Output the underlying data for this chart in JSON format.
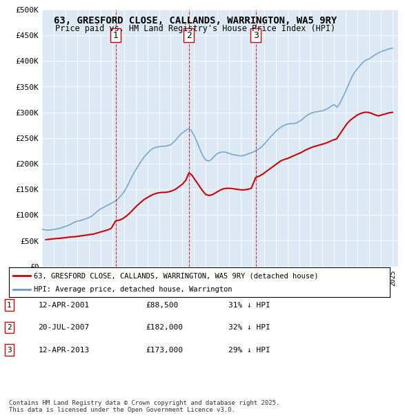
{
  "title": "63, GRESFORD CLOSE, CALLANDS, WARRINGTON, WA5 9RY",
  "subtitle": "Price paid vs. HM Land Registry's House Price Index (HPI)",
  "ylim": [
    0,
    500000
  ],
  "yticks": [
    0,
    50000,
    100000,
    150000,
    200000,
    250000,
    300000,
    350000,
    400000,
    450000,
    500000
  ],
  "ytick_labels": [
    "£0",
    "£50K",
    "£100K",
    "£150K",
    "£200K",
    "£250K",
    "£300K",
    "£350K",
    "£400K",
    "£450K",
    "£500K"
  ],
  "xlim_start": 1995.0,
  "xlim_end": 2025.5,
  "background_color": "#dce9f5",
  "plot_bg_color": "#dce9f5",
  "red_line_color": "#cc0000",
  "blue_line_color": "#6699cc",
  "vline_color": "#cc0000",
  "transaction_dates": [
    2001.278,
    2007.553,
    2013.278
  ],
  "transaction_labels": [
    "1",
    "2",
    "3"
  ],
  "legend_label_red": "63, GRESFORD CLOSE, CALLANDS, WARRINGTON, WA5 9RY (detached house)",
  "legend_label_blue": "HPI: Average price, detached house, Warrington",
  "table_rows": [
    {
      "num": "1",
      "date": "12-APR-2001",
      "price": "£88,500",
      "hpi": "31% ↓ HPI"
    },
    {
      "num": "2",
      "date": "20-JUL-2007",
      "price": "£182,000",
      "hpi": "32% ↓ HPI"
    },
    {
      "num": "3",
      "date": "12-APR-2013",
      "price": "£173,000",
      "hpi": "29% ↓ HPI"
    }
  ],
  "footnote": "Contains HM Land Registry data © Crown copyright and database right 2025.\nThis data is licensed under the Open Government Licence v3.0.",
  "hpi_data": {
    "dates": [
      1995.0,
      1995.25,
      1995.5,
      1995.75,
      1996.0,
      1996.25,
      1996.5,
      1996.75,
      1997.0,
      1997.25,
      1997.5,
      1997.75,
      1998.0,
      1998.25,
      1998.5,
      1998.75,
      1999.0,
      1999.25,
      1999.5,
      1999.75,
      2000.0,
      2000.25,
      2000.5,
      2000.75,
      2001.0,
      2001.25,
      2001.5,
      2001.75,
      2002.0,
      2002.25,
      2002.5,
      2002.75,
      2003.0,
      2003.25,
      2003.5,
      2003.75,
      2004.0,
      2004.25,
      2004.5,
      2004.75,
      2005.0,
      2005.25,
      2005.5,
      2005.75,
      2006.0,
      2006.25,
      2006.5,
      2006.75,
      2007.0,
      2007.25,
      2007.5,
      2007.75,
      2008.0,
      2008.25,
      2008.5,
      2008.75,
      2009.0,
      2009.25,
      2009.5,
      2009.75,
      2010.0,
      2010.25,
      2010.5,
      2010.75,
      2011.0,
      2011.25,
      2011.5,
      2011.75,
      2012.0,
      2012.25,
      2012.5,
      2012.75,
      2013.0,
      2013.25,
      2013.5,
      2013.75,
      2014.0,
      2014.25,
      2014.5,
      2014.75,
      2015.0,
      2015.25,
      2015.5,
      2015.75,
      2016.0,
      2016.25,
      2016.5,
      2016.75,
      2017.0,
      2017.25,
      2017.5,
      2017.75,
      2018.0,
      2018.25,
      2018.5,
      2018.75,
      2019.0,
      2019.25,
      2019.5,
      2019.75,
      2020.0,
      2020.25,
      2020.5,
      2020.75,
      2021.0,
      2021.25,
      2021.5,
      2021.75,
      2022.0,
      2022.25,
      2022.5,
      2022.75,
      2023.0,
      2023.25,
      2023.5,
      2023.75,
      2024.0,
      2024.25,
      2024.5,
      2024.75,
      2025.0
    ],
    "values": [
      72000,
      71000,
      70500,
      71000,
      72000,
      73000,
      74000,
      76000,
      78000,
      80000,
      83000,
      86000,
      88000,
      89000,
      91000,
      93000,
      95000,
      98000,
      103000,
      108000,
      112000,
      115000,
      118000,
      121000,
      124000,
      127000,
      132000,
      138000,
      145000,
      155000,
      167000,
      178000,
      188000,
      197000,
      206000,
      214000,
      220000,
      226000,
      230000,
      232000,
      233000,
      234000,
      234000,
      235000,
      237000,
      242000,
      248000,
      255000,
      260000,
      264000,
      268000,
      265000,
      255000,
      242000,
      228000,
      215000,
      207000,
      205000,
      208000,
      215000,
      220000,
      222000,
      223000,
      222000,
      220000,
      218000,
      217000,
      216000,
      215000,
      216000,
      218000,
      220000,
      222000,
      225000,
      228000,
      232000,
      238000,
      244000,
      251000,
      257000,
      263000,
      268000,
      272000,
      275000,
      277000,
      278000,
      278000,
      279000,
      282000,
      286000,
      291000,
      295000,
      298000,
      300000,
      301000,
      302000,
      303000,
      305000,
      308000,
      312000,
      315000,
      310000,
      318000,
      330000,
      342000,
      355000,
      368000,
      378000,
      385000,
      392000,
      398000,
      402000,
      404000,
      408000,
      412000,
      415000,
      418000,
      420000,
      422000,
      424000,
      425000
    ]
  },
  "price_data": {
    "dates": [
      1995.3,
      1995.7,
      1996.1,
      1996.4,
      1996.6,
      1997.0,
      1997.3,
      1997.6,
      1997.9,
      1998.2,
      1998.5,
      1998.8,
      1999.1,
      1999.4,
      1999.7,
      2000.0,
      2000.3,
      2000.6,
      2000.9,
      2001.278,
      2001.6,
      2001.9,
      2002.2,
      2002.5,
      2002.8,
      2003.1,
      2003.4,
      2003.7,
      2004.0,
      2004.3,
      2004.6,
      2004.9,
      2005.2,
      2005.5,
      2005.8,
      2006.1,
      2006.4,
      2006.7,
      2007.0,
      2007.3,
      2007.553,
      2007.8,
      2008.1,
      2008.4,
      2008.7,
      2009.0,
      2009.3,
      2009.6,
      2009.9,
      2010.2,
      2010.5,
      2010.8,
      2011.1,
      2011.4,
      2011.7,
      2012.0,
      2012.3,
      2012.6,
      2012.9,
      2013.278,
      2013.6,
      2013.9,
      2014.2,
      2014.5,
      2014.8,
      2015.1,
      2015.4,
      2015.7,
      2016.0,
      2016.3,
      2016.6,
      2016.9,
      2017.2,
      2017.5,
      2017.8,
      2018.1,
      2018.4,
      2018.7,
      2019.0,
      2019.3,
      2019.6,
      2019.9,
      2020.2,
      2020.5,
      2020.8,
      2021.1,
      2021.4,
      2021.7,
      2022.0,
      2022.3,
      2022.6,
      2022.9,
      2023.2,
      2023.5,
      2023.8,
      2024.1,
      2024.4,
      2024.7,
      2025.0
    ],
    "values": [
      52000,
      53000,
      54000,
      54500,
      55000,
      56000,
      57000,
      57500,
      58000,
      59000,
      60000,
      61000,
      62000,
      63000,
      65000,
      67000,
      69000,
      71000,
      74000,
      88500,
      90000,
      93000,
      98000,
      104000,
      111000,
      118000,
      124000,
      130000,
      134000,
      138000,
      141000,
      143000,
      144000,
      144000,
      145000,
      147000,
      150000,
      155000,
      160000,
      168000,
      182000,
      178000,
      168000,
      158000,
      148000,
      140000,
      138000,
      140000,
      144000,
      148000,
      151000,
      152000,
      152000,
      151000,
      150000,
      149000,
      149000,
      150000,
      152000,
      173000,
      176000,
      180000,
      185000,
      190000,
      195000,
      200000,
      205000,
      208000,
      210000,
      213000,
      216000,
      219000,
      222000,
      226000,
      229000,
      232000,
      234000,
      236000,
      238000,
      240000,
      243000,
      246000,
      248000,
      258000,
      268000,
      278000,
      285000,
      290000,
      295000,
      298000,
      300000,
      300000,
      298000,
      295000,
      293000,
      295000,
      297000,
      299000,
      300000
    ]
  }
}
